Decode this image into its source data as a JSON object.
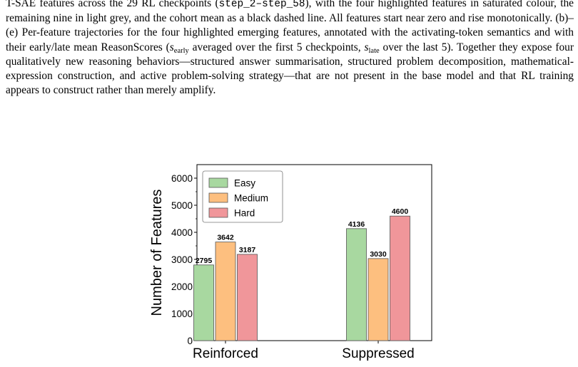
{
  "caption": {
    "line1": "T-SAE features across the 29 RL checkpoints (",
    "step_range": "step_2–step_58",
    "line1b": "), with the four highlighted features in saturated colour, the remaining nine in light grey, and the cohort mean as a black dashed line. All features start near zero and rise monotonically. (b)–(e) Per-feature trajectories for the four highlighted emerging features, annotated with the activating-token semantics and with their early/late mean ReasonScores (",
    "s": "s",
    "early": "early",
    "mid": " averaged over the first 5 checkpoints, ",
    "late": "late",
    "tail": " over the last 5). Together they expose four qualitatively new reasoning behaviors—structured answer summarisation, structured problem decomposition, mathematical-expression construction, and active problem-solving strategy—that are not present in the base model and that RL training appears to construct rather than merely amplify."
  },
  "chart_data": {
    "type": "bar",
    "categories": [
      "Reinforced",
      "Suppressed"
    ],
    "series": [
      {
        "name": "Easy",
        "values": [
          2795,
          4136
        ],
        "color": "#a8d8a0"
      },
      {
        "name": "Medium",
        "values": [
          3642,
          3030
        ],
        "color": "#fdbf7f"
      },
      {
        "name": "Hard",
        "values": [
          3187,
          4600
        ],
        "color": "#f0969a"
      }
    ],
    "ylabel": "Number of Features",
    "ylim": [
      0,
      6500
    ],
    "yticks": [
      0,
      1000,
      2000,
      3000,
      4000,
      5000,
      6000
    ],
    "legend": "top-left",
    "grid": false
  }
}
